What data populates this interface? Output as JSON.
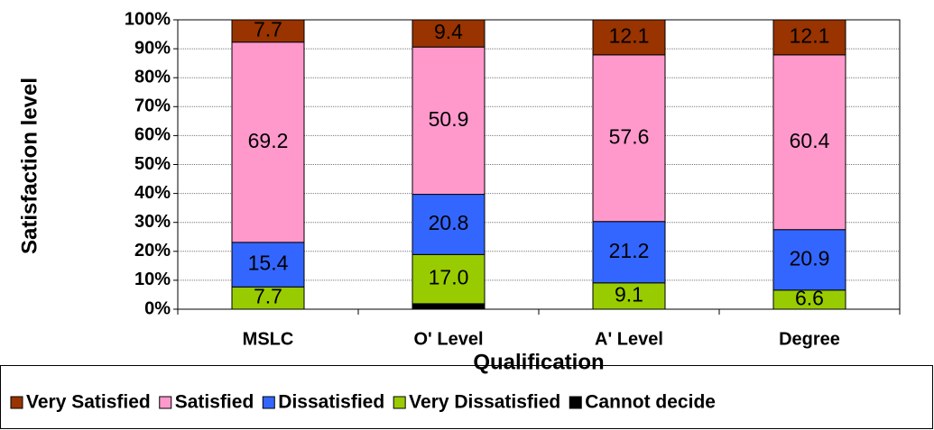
{
  "chart_data": {
    "type": "stacked_bar",
    "x_label": "Qualification",
    "y_label": "Satisfaction level",
    "categories": [
      "MSLC",
      "O' Level",
      "A' Level",
      "Degree"
    ],
    "series": [
      {
        "name": "Cannot decide",
        "color": "#000000",
        "values": [
          0,
          1.9,
          0,
          0
        ]
      },
      {
        "name": "Very Dissatisfied",
        "color": "#99cc00",
        "values": [
          7.7,
          17.0,
          9.1,
          6.6
        ],
        "value_labels": [
          "7.7",
          "17.0",
          "9.1",
          "6.6"
        ]
      },
      {
        "name": "Dissatisfied",
        "color": "#3366ff",
        "values": [
          15.4,
          20.8,
          21.2,
          20.9
        ]
      },
      {
        "name": "Satisfied",
        "color": "#ff99cc",
        "values": [
          69.2,
          50.9,
          57.6,
          60.4
        ]
      },
      {
        "name": "Very Satisfied",
        "color": "#993300",
        "values": [
          7.7,
          9.4,
          12.1,
          12.1
        ]
      }
    ],
    "ylim": [
      0,
      100
    ],
    "yticks": [
      {
        "value": 0,
        "label": "0%"
      },
      {
        "value": 10,
        "label": "10%"
      },
      {
        "value": 20,
        "label": "20%"
      },
      {
        "value": 30,
        "label": "30%"
      },
      {
        "value": 40,
        "label": "40%"
      },
      {
        "value": 50,
        "label": "50%"
      },
      {
        "value": 60,
        "label": "60%"
      },
      {
        "value": 70,
        "label": "70%"
      },
      {
        "value": 80,
        "label": "80%"
      },
      {
        "value": 90,
        "label": "90%"
      },
      {
        "value": 100,
        "label": "100%"
      }
    ],
    "grid": true,
    "legend": "bottom"
  }
}
